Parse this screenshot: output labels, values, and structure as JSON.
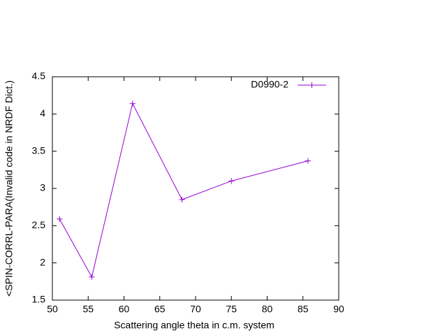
{
  "chart_data": {
    "type": "line",
    "xlabel": "Scattering angle theta in c.m. system",
    "ylabel": "<SPIN-CORRL-PARA(Invalid code in NRDF Dict.)",
    "xlim": [
      50,
      90
    ],
    "xticks": [
      50,
      55,
      60,
      65,
      70,
      75,
      80,
      85,
      90
    ],
    "ylim": [
      1.5,
      4.5
    ],
    "yticks": [
      1.5,
      2,
      2.5,
      3,
      3.5,
      4,
      4.5
    ],
    "legend": "top-right",
    "series": [
      {
        "name": "D0990-2",
        "color": "#9400d3",
        "x": [
          51,
          55.5,
          61.2,
          68.1,
          75,
          85.7
        ],
        "values": [
          2.59,
          1.81,
          4.14,
          2.85,
          3.1,
          3.37
        ]
      }
    ]
  }
}
